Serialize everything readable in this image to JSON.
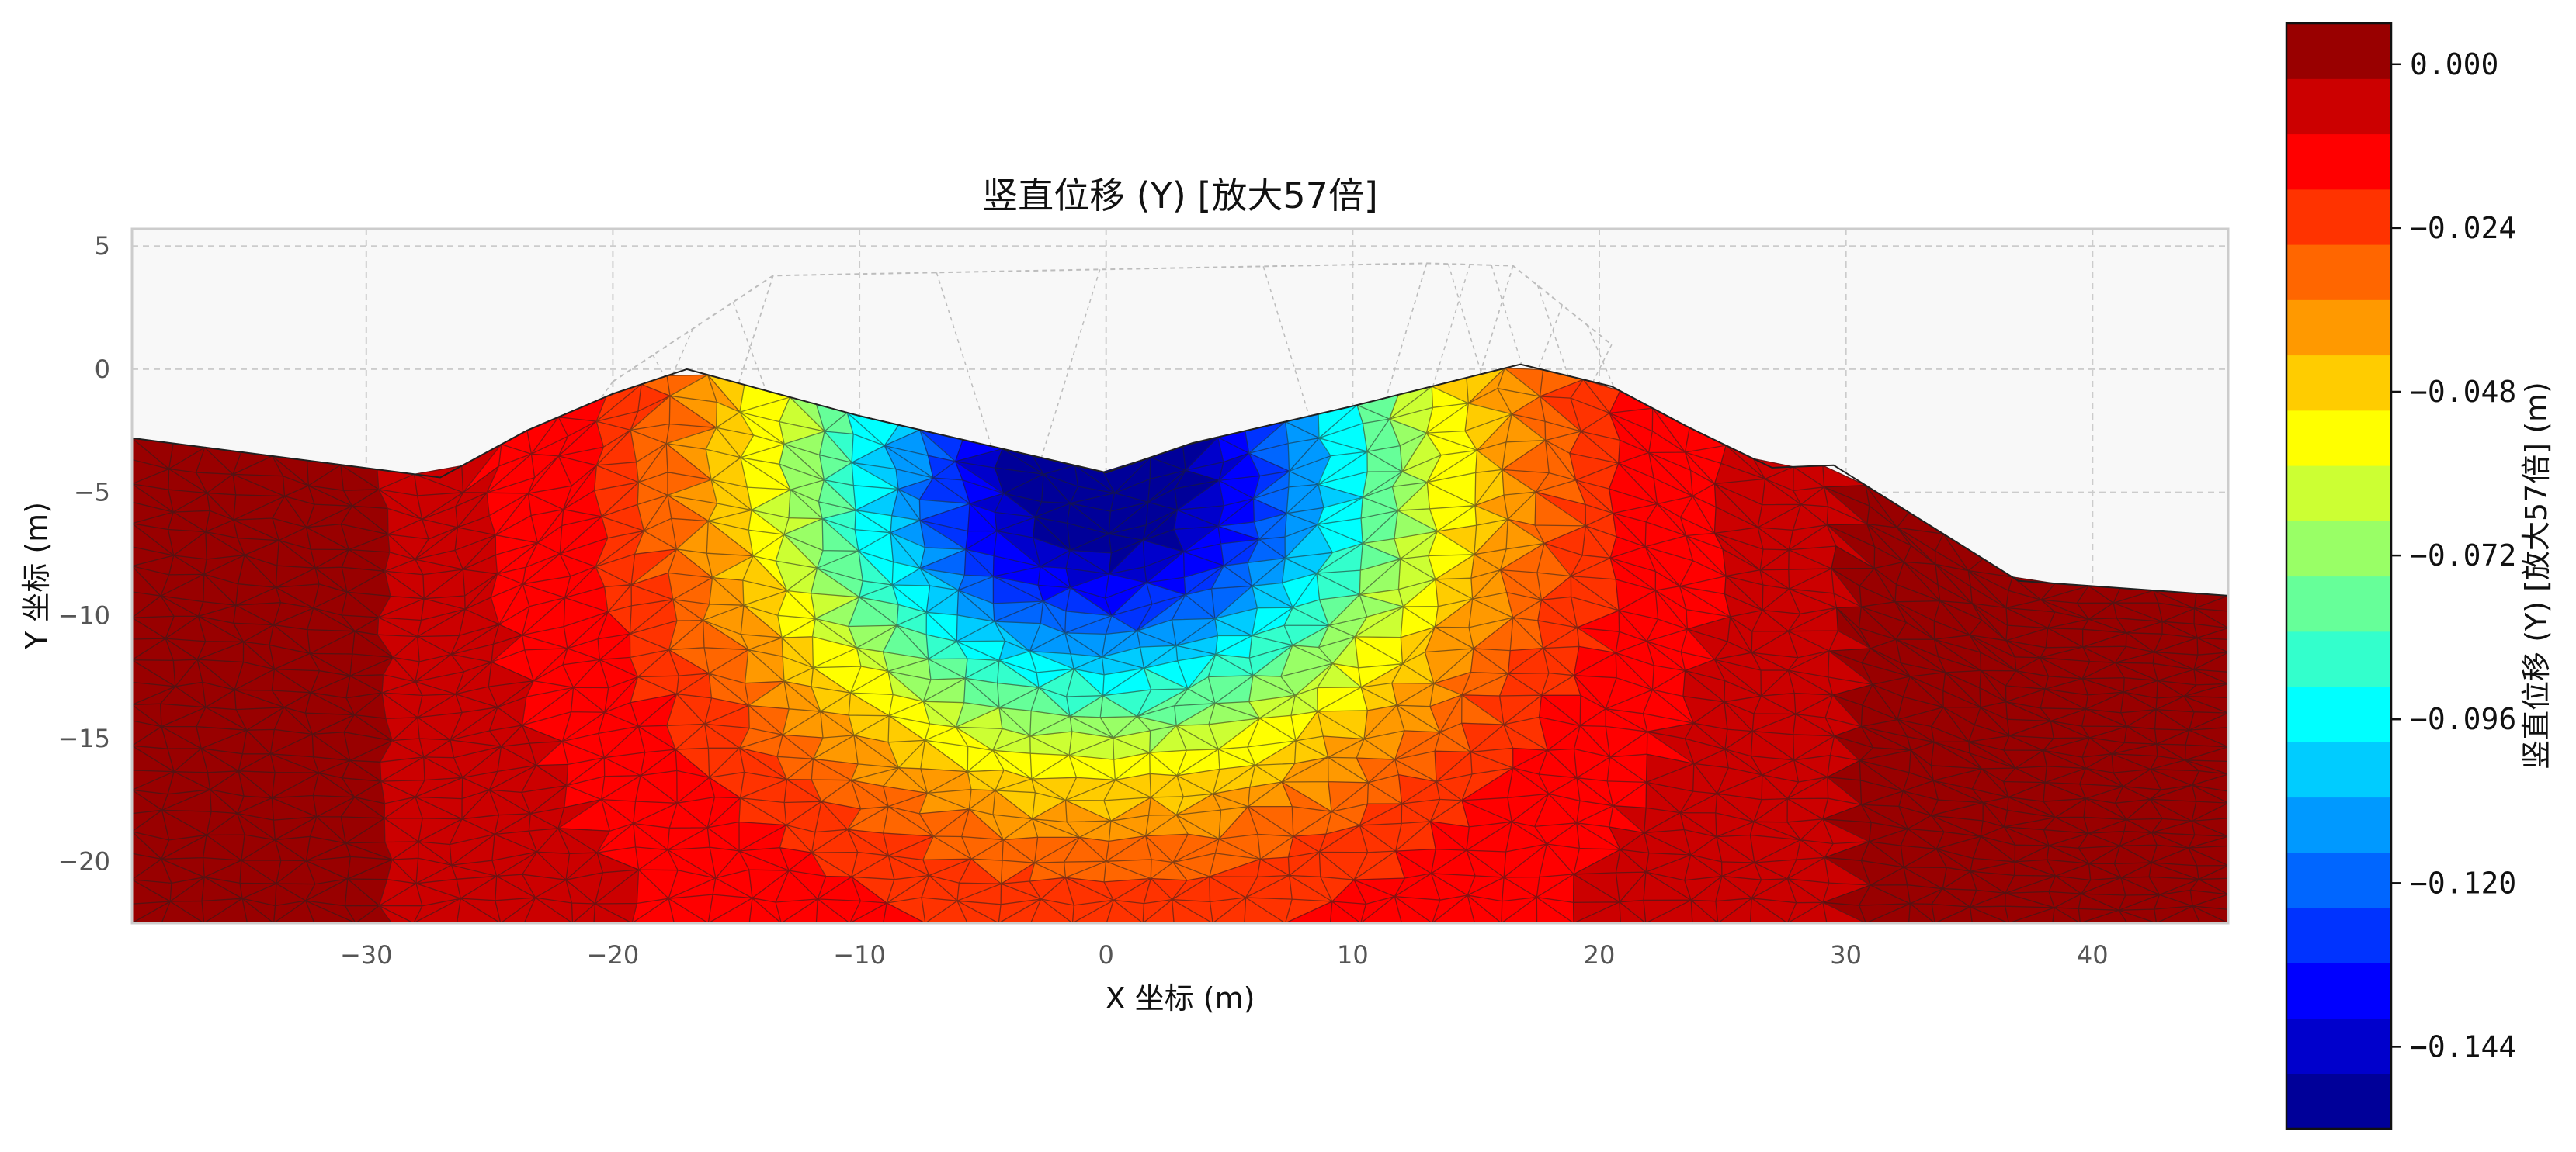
{
  "chart_data": {
    "type": "heatmap",
    "title": "竖直位移 (Y) [放大57倍]",
    "xlabel": "X 坐标 (m)",
    "ylabel": "Y 坐标 (m)",
    "xlim": [
      -39.5,
      45.5
    ],
    "ylim": [
      -22.5,
      5.7
    ],
    "xticks": [
      -30,
      -20,
      -10,
      0,
      10,
      20,
      30,
      40
    ],
    "yticks": [
      5,
      0,
      -5,
      -10,
      -15,
      -20
    ],
    "grid": true,
    "colormap": "jet",
    "value_range": [
      -0.156,
      0.006
    ],
    "colorbar": {
      "label": "竖直位移 (Y) [放大57倍] (m)",
      "ticks": [
        0.0,
        -0.024,
        -0.048,
        -0.072,
        -0.096,
        -0.12,
        -0.144
      ],
      "tick_labels": [
        "0.000",
        "−0.024",
        "−0.048",
        "−0.072",
        "−0.096",
        "−0.120",
        "−0.144"
      ],
      "levels": 20
    },
    "deformed_surface": [
      [
        -39.5,
        -2.8
      ],
      [
        -27,
        -4.4
      ],
      [
        -23.5,
        -2.5
      ],
      [
        -20,
        -1.0
      ],
      [
        -17,
        0.0
      ],
      [
        -10,
        -1.9
      ],
      [
        0,
        -4.2
      ],
      [
        3.5,
        -3.0
      ],
      [
        10,
        -1.5
      ],
      [
        16.8,
        0.2
      ],
      [
        20.5,
        -0.7
      ],
      [
        23.5,
        -2.3
      ],
      [
        27,
        -4.0
      ],
      [
        29.5,
        -3.9
      ],
      [
        37,
        -8.6
      ],
      [
        45.5,
        -9.2
      ]
    ],
    "original_surface": [
      [
        -20,
        -0.5
      ],
      [
        -13.5,
        3.8
      ],
      [
        13,
        4.3
      ],
      [
        16.5,
        4.2
      ],
      [
        20.5,
        1.0
      ]
    ],
    "trough": {
      "x": 0,
      "y": -4.3,
      "max_settlement": -0.15
    }
  },
  "colors": {
    "background": "#f8f8f8",
    "grid": "#cccccc",
    "mesh_edge": "#202020",
    "undeformed_mesh": "#bdbdbd",
    "axes_frame": "#cccccc"
  }
}
